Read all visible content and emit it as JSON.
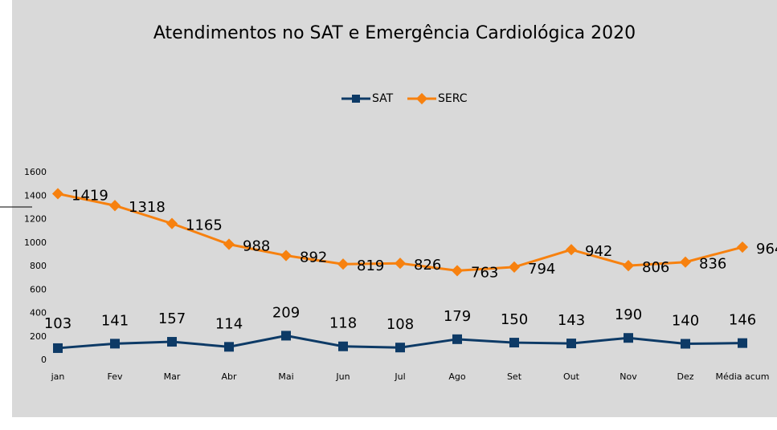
{
  "chart_data": {
    "type": "line",
    "title": "Atendimentos no SAT e Emergência Cardiológica 2020",
    "categories": [
      "jan",
      "Fev",
      "Mar",
      "Abr",
      "Mai",
      "Jun",
      "Jul",
      "Ago",
      "Set",
      "Out",
      "Nov",
      "Dez",
      "Média acum"
    ],
    "series": [
      {
        "name": "SAT",
        "color": "#0d3a66",
        "values": [
          103,
          141,
          157,
          114,
          209,
          118,
          108,
          179,
          150,
          143,
          190,
          140,
          146
        ]
      },
      {
        "name": "SERC",
        "color": "#f7810f",
        "values": [
          1419,
          1318,
          1165,
          988,
          892,
          819,
          826,
          763,
          794,
          942,
          806,
          836,
          964
        ]
      }
    ],
    "ylim": [
      0,
      1600
    ],
    "yticks": [
      0,
      200,
      400,
      600,
      800,
      1000,
      1200,
      1400,
      1600
    ],
    "legend": "top",
    "grid": false
  }
}
